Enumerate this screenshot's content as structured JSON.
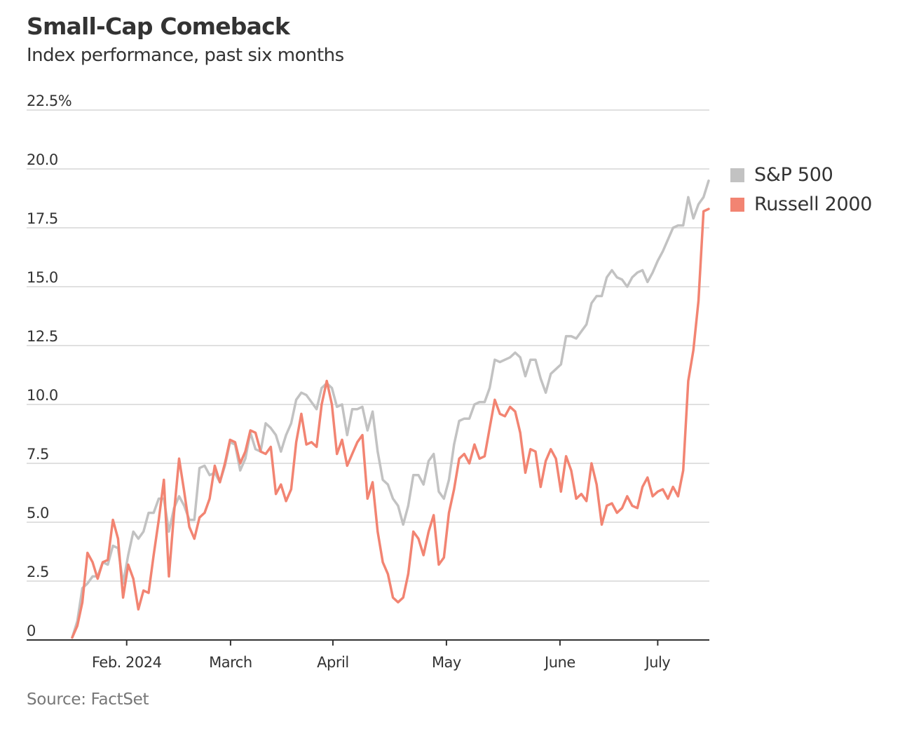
{
  "chart_data": {
    "type": "line",
    "title": "Small-Cap Comeback",
    "subtitle": "Index performance, past six months",
    "source": "Source: FactSet",
    "xlabel": "",
    "ylabel": "",
    "ylim": [
      0,
      22.5
    ],
    "yticks": [
      0,
      2.5,
      5,
      7.5,
      10,
      12.5,
      15,
      17.5,
      20,
      22.5
    ],
    "ytick_labels": [
      "0",
      "2.5",
      "5.0",
      "7.5",
      "10.0",
      "12.5",
      "15.0",
      "17.5",
      "20.0",
      "22.5%"
    ],
    "x_unit": "trading day index",
    "xlim": [
      0,
      125
    ],
    "xticks": [
      {
        "label": "Feb. 2024",
        "x": 10.7
      },
      {
        "label": "March",
        "x": 31.1
      },
      {
        "label": "April",
        "x": 51.2
      },
      {
        "label": "May",
        "x": 73.5
      },
      {
        "label": "June",
        "x": 95.8
      },
      {
        "label": "July",
        "x": 115.0
      }
    ],
    "grid": true,
    "legend_position": "right",
    "series": [
      {
        "name": "S&P 500",
        "color": "#c2c2c2",
        "values": [
          0.1,
          0.8,
          2.2,
          2.4,
          2.7,
          2.7,
          3.3,
          3.2,
          4.0,
          3.9,
          2.4,
          3.6,
          4.6,
          4.3,
          4.6,
          5.4,
          5.4,
          6.0,
          6.0,
          4.6,
          5.6,
          6.1,
          5.7,
          5.1,
          5.1,
          7.3,
          7.4,
          7.0,
          7.1,
          6.7,
          7.4,
          8.4,
          8.3,
          7.2,
          7.7,
          8.8,
          8.1,
          8.0,
          9.2,
          9.0,
          8.7,
          8.0,
          8.7,
          9.2,
          10.2,
          10.5,
          10.4,
          10.1,
          9.8,
          10.7,
          10.9,
          10.7,
          9.9,
          10.0,
          8.7,
          9.8,
          9.8,
          9.9,
          8.9,
          9.7,
          8.0,
          6.8,
          6.6,
          6.0,
          5.7,
          4.9,
          5.7,
          7.0,
          7.0,
          6.6,
          7.6,
          7.9,
          6.3,
          6.0,
          6.8,
          8.3,
          9.3,
          9.4,
          9.4,
          10.0,
          10.1,
          10.1,
          10.7,
          11.9,
          11.8,
          11.9,
          12.0,
          12.2,
          12.0,
          11.2,
          11.9,
          11.9,
          11.1,
          10.5,
          11.3,
          11.5,
          11.7,
          12.9,
          12.9,
          12.8,
          13.1,
          13.4,
          14.3,
          14.6,
          14.6,
          15.4,
          15.7,
          15.4,
          15.3,
          15.0,
          15.4,
          15.6,
          15.7,
          15.2,
          15.6,
          16.1,
          16.5,
          17.0,
          17.5,
          17.6,
          17.6,
          18.8,
          17.9,
          18.5,
          18.8,
          19.5
        ]
      },
      {
        "name": "Russell 2000",
        "color": "#f28472",
        "values": [
          0.1,
          0.6,
          1.6,
          3.7,
          3.3,
          2.6,
          3.3,
          3.4,
          5.1,
          4.3,
          1.8,
          3.2,
          2.6,
          1.3,
          2.1,
          2.0,
          3.6,
          5.1,
          6.8,
          2.7,
          5.4,
          7.7,
          6.3,
          4.8,
          4.3,
          5.2,
          5.4,
          6.0,
          7.4,
          6.7,
          7.5,
          8.5,
          8.4,
          7.5,
          8.0,
          8.9,
          8.8,
          8.0,
          7.9,
          8.2,
          6.2,
          6.6,
          5.9,
          6.4,
          8.4,
          9.6,
          8.3,
          8.4,
          8.2,
          10.0,
          11.0,
          10.0,
          7.9,
          8.5,
          7.4,
          7.9,
          8.4,
          8.7,
          6.0,
          6.7,
          4.6,
          3.3,
          2.8,
          1.8,
          1.6,
          1.8,
          2.8,
          4.6,
          4.3,
          3.6,
          4.6,
          5.3,
          3.2,
          3.5,
          5.4,
          6.4,
          7.7,
          7.9,
          7.5,
          8.3,
          7.7,
          7.8,
          9.0,
          10.2,
          9.6,
          9.5,
          9.9,
          9.7,
          8.8,
          7.1,
          8.1,
          8.0,
          6.5,
          7.6,
          8.1,
          7.7,
          6.3,
          7.8,
          7.2,
          6.0,
          6.2,
          5.9,
          7.5,
          6.6,
          4.9,
          5.7,
          5.8,
          5.4,
          5.6,
          6.1,
          5.7,
          5.6,
          6.5,
          6.9,
          6.1,
          6.3,
          6.4,
          6.0,
          6.5,
          6.1,
          7.2,
          11.0,
          12.3,
          14.4,
          18.2,
          18.3
        ]
      }
    ]
  }
}
